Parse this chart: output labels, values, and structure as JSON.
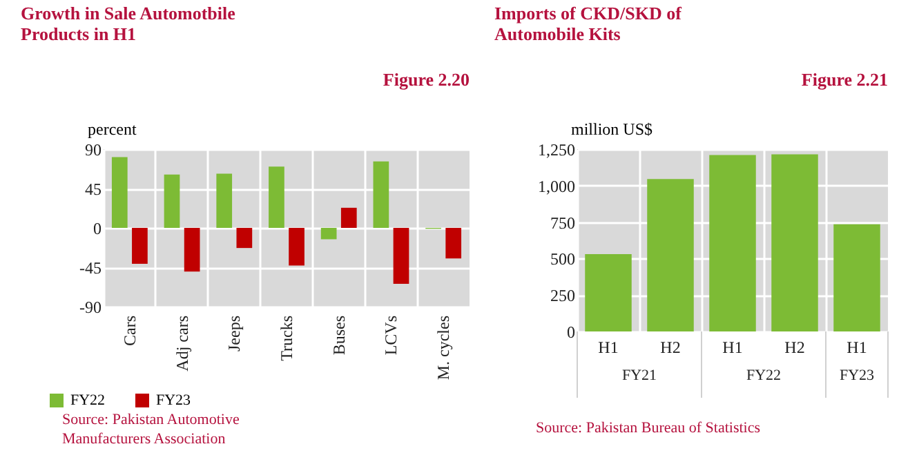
{
  "chart_data": [
    {
      "type": "bar",
      "title": "Growth in Sale Automotbile Products in H1",
      "ylabel": "percent",
      "categories": [
        "Cars",
        "Adj cars",
        "Jeeps",
        "Trucks",
        "Buses",
        "LCVs",
        "M. cycles"
      ],
      "series": [
        {
          "name": "FY22",
          "color": "#7dbb35",
          "values": [
            81,
            61,
            62,
            70,
            -13,
            76,
            -1
          ]
        },
        {
          "name": "FY23",
          "color": "#c00000",
          "values": [
            -41,
            -50,
            -23,
            -43,
            23,
            -64,
            -35
          ]
        }
      ],
      "ylim": [
        -90,
        90
      ],
      "yticks": [
        -90,
        -45,
        0,
        45,
        90
      ],
      "grid": true,
      "legend": "bottom",
      "annotations": [
        "Figure 2.20",
        "Source: Pakistan Automotive Manufacturers Association"
      ]
    },
    {
      "type": "bar",
      "title": "Imports of CKD/SKD of Automobile Kits",
      "ylabel": "million US$",
      "categories": [
        "H1",
        "H2",
        "H1",
        "H2",
        "H1"
      ],
      "values": [
        530,
        1045,
        1210,
        1215,
        735
      ],
      "color": "#7dbb35",
      "ylim": [
        0,
        1250
      ],
      "yticks": [
        0,
        250,
        500,
        750,
        {
          "value": 1000,
          "label": "1,000"
        },
        {
          "value": 1250,
          "label": "1,250"
        }
      ],
      "grid": true,
      "annotations": [
        "Figure 2.21",
        "FY21",
        "FY22",
        "FY23",
        "Source: Pakistan Bureau of Statistics"
      ]
    }
  ]
}
